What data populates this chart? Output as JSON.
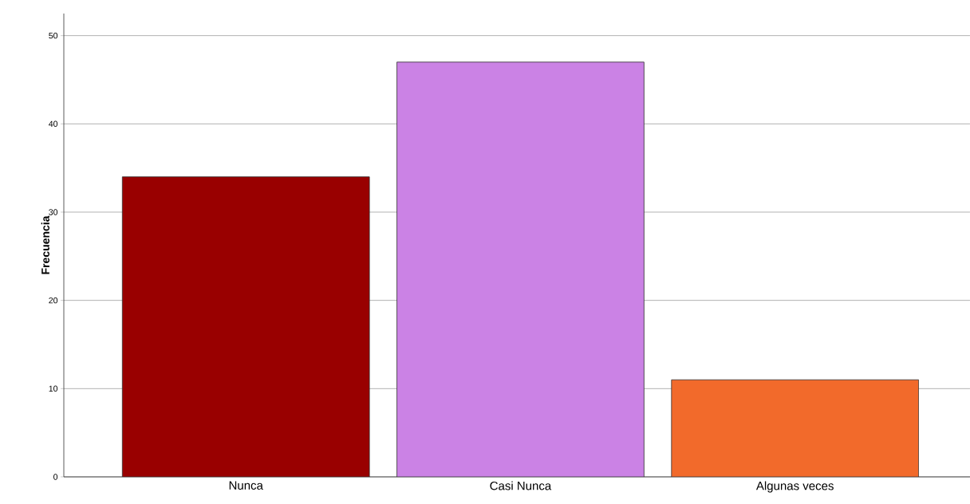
{
  "chart_data": {
    "type": "bar",
    "ylabel": "Frecuencia",
    "categories": [
      "Nunca",
      "Casi Nunca",
      "Algunas veces"
    ],
    "values": [
      34,
      47,
      11
    ],
    "colors": [
      "#990000",
      "#cb82e5",
      "#f26a2b"
    ],
    "ylim": [
      0,
      52.5
    ],
    "yticks": [
      0,
      10,
      20,
      30,
      40,
      50
    ],
    "grid": "y"
  }
}
